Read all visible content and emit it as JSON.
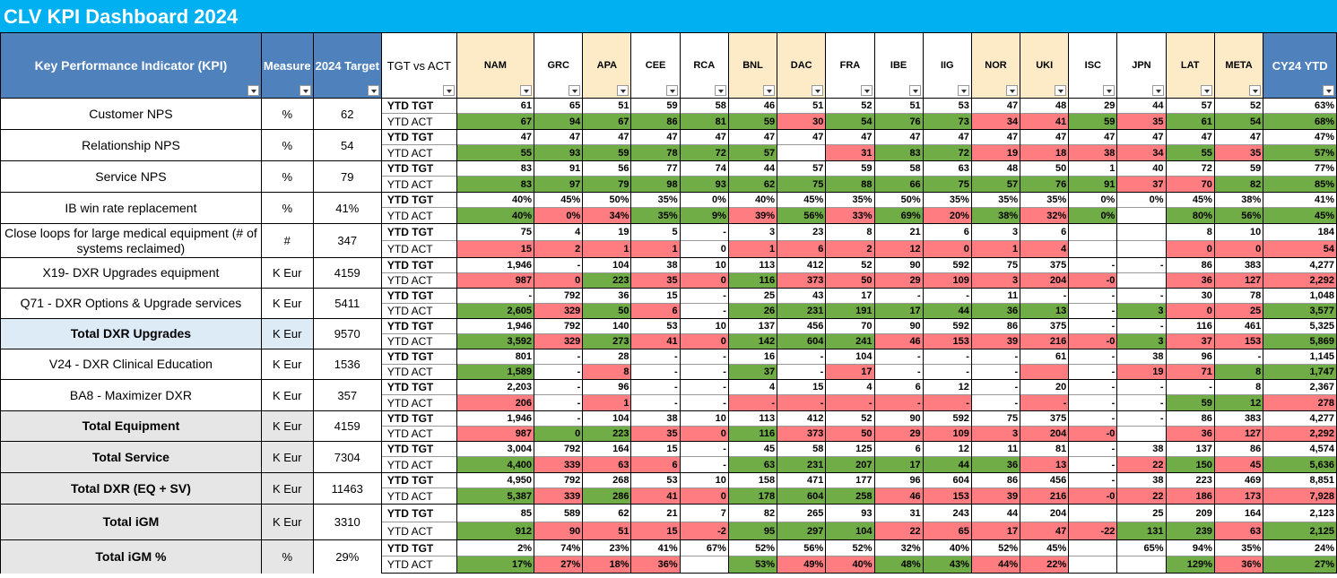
{
  "title": "CLV KPI Dashboard 2024",
  "header": {
    "kpi": "Key Performance Indicator (KPI)",
    "measure": "Measure",
    "target": "2024 Target",
    "tgt_vs_act": "TGT vs ACT",
    "regions": [
      "NAM",
      "GRC",
      "APA",
      "CEE",
      "RCA",
      "BNL",
      "DAC",
      "FRA",
      "IBE",
      "IIG",
      "NOR",
      "UKI",
      "ISC",
      "JPN",
      "LAT",
      "META"
    ],
    "ytd": "CY24 YTD"
  },
  "labels": {
    "tgt": "YTD TGT",
    "act": "YTD ACT"
  },
  "colors": {
    "green": "#70AD47",
    "red": "#FF7C80",
    "header_blue": "#4F81BD",
    "title_blue": "#00B0F0",
    "header_yellow": "#FDEBC8"
  },
  "rows": [
    {
      "kpi": "Customer NPS",
      "measure": "%",
      "target": "62",
      "bold": false,
      "shade": "",
      "tgt": [
        "61",
        "65",
        "51",
        "59",
        "58",
        "46",
        "51",
        "52",
        "51",
        "53",
        "47",
        "48",
        "29",
        "44",
        "57",
        "52",
        "63%"
      ],
      "act": [
        "67",
        "94",
        "67",
        "86",
        "81",
        "59",
        "30",
        "54",
        "76",
        "73",
        "34",
        "41",
        "59",
        "35",
        "61",
        "54",
        "68%"
      ],
      "act_c": [
        "g",
        "g",
        "g",
        "g",
        "g",
        "g",
        "r",
        "g",
        "g",
        "g",
        "r",
        "r",
        "g",
        "r",
        "g",
        "g",
        "g"
      ]
    },
    {
      "kpi": "Relationship NPS",
      "measure": "%",
      "target": "54",
      "bold": false,
      "shade": "",
      "tgt": [
        "47",
        "47",
        "47",
        "47",
        "47",
        "47",
        "47",
        "47",
        "47",
        "47",
        "47",
        "47",
        "47",
        "47",
        "47",
        "47",
        "47%"
      ],
      "act": [
        "55",
        "93",
        "59",
        "78",
        "72",
        "57",
        "",
        "31",
        "83",
        "72",
        "19",
        "18",
        "38",
        "34",
        "55",
        "35",
        "57%"
      ],
      "act_c": [
        "g",
        "g",
        "g",
        "g",
        "g",
        "g",
        "",
        "r",
        "g",
        "g",
        "r",
        "r",
        "r",
        "r",
        "g",
        "r",
        "g"
      ]
    },
    {
      "kpi": "Service NPS",
      "measure": "%",
      "target": "79",
      "bold": false,
      "shade": "",
      "tgt": [
        "83",
        "91",
        "56",
        "77",
        "74",
        "44",
        "57",
        "59",
        "58",
        "63",
        "48",
        "50",
        "1",
        "40",
        "72",
        "59",
        "77%"
      ],
      "act": [
        "83",
        "97",
        "79",
        "98",
        "93",
        "62",
        "75",
        "88",
        "66",
        "75",
        "57",
        "76",
        "91",
        "37",
        "70",
        "82",
        "85%"
      ],
      "act_c": [
        "g",
        "g",
        "g",
        "g",
        "g",
        "g",
        "g",
        "g",
        "g",
        "g",
        "g",
        "g",
        "g",
        "r",
        "r",
        "g",
        "g"
      ]
    },
    {
      "kpi": "IB win rate replacement",
      "measure": "%",
      "target": "41%",
      "bold": false,
      "shade": "",
      "tgt": [
        "40%",
        "45%",
        "50%",
        "35%",
        "0%",
        "40%",
        "45%",
        "35%",
        "50%",
        "35%",
        "35%",
        "35%",
        "0%",
        "0%",
        "45%",
        "38%",
        "41%"
      ],
      "act": [
        "40%",
        "0%",
        "34%",
        "35%",
        "9%",
        "39%",
        "56%",
        "33%",
        "69%",
        "20%",
        "38%",
        "32%",
        "0%",
        "",
        "80%",
        "56%",
        "45%"
      ],
      "act_c": [
        "g",
        "r",
        "r",
        "g",
        "g",
        "r",
        "g",
        "r",
        "g",
        "r",
        "g",
        "r",
        "g",
        "",
        "g",
        "g",
        "g"
      ]
    },
    {
      "kpi": "Close loops for large medical equipment (# of systems reclaimed)",
      "measure": "#",
      "target": "347",
      "bold": false,
      "shade": "",
      "tgt": [
        "75",
        "4",
        "19",
        "5",
        "-",
        "3",
        "23",
        "8",
        "21",
        "6",
        "3",
        "6",
        "",
        "",
        "8",
        "10",
        "184"
      ],
      "act": [
        "15",
        "2",
        "1",
        "1",
        "0",
        "1",
        "6",
        "2",
        "12",
        "0",
        "1",
        "4",
        "",
        "",
        "0",
        "0",
        "54"
      ],
      "act_c": [
        "r",
        "r",
        "r",
        "r",
        "",
        "r",
        "r",
        "r",
        "r",
        "r",
        "r",
        "r",
        "",
        "",
        "r",
        "r",
        "r"
      ]
    },
    {
      "kpi": "X19- DXR Upgrades equipment",
      "measure": "K Eur",
      "target": "4159",
      "bold": false,
      "shade": "",
      "tgt": [
        "1,946",
        "-",
        "104",
        "38",
        "10",
        "113",
        "412",
        "52",
        "90",
        "592",
        "75",
        "375",
        "-",
        "-",
        "86",
        "383",
        "4,277"
      ],
      "act": [
        "987",
        "0",
        "223",
        "35",
        "0",
        "116",
        "373",
        "50",
        "29",
        "109",
        "3",
        "204",
        "-0",
        "",
        "36",
        "127",
        "2,292"
      ],
      "act_c": [
        "r",
        "r",
        "g",
        "r",
        "r",
        "g",
        "r",
        "r",
        "r",
        "r",
        "r",
        "r",
        "r",
        "",
        "r",
        "r",
        "r"
      ]
    },
    {
      "kpi": "Q71 - DXR Options & Upgrade services",
      "measure": "K Eur",
      "target": "5411",
      "bold": false,
      "shade": "",
      "tgt": [
        "-",
        "792",
        "36",
        "15",
        "-",
        "25",
        "43",
        "17",
        "-",
        "-",
        "11",
        "-",
        "-",
        "-",
        "30",
        "78",
        "1,048"
      ],
      "act": [
        "2,605",
        "329",
        "50",
        "6",
        "-",
        "26",
        "231",
        "191",
        "17",
        "44",
        "36",
        "13",
        "-",
        "3",
        "0",
        "25",
        "3,577"
      ],
      "act_c": [
        "g",
        "r",
        "g",
        "r",
        "",
        "g",
        "g",
        "g",
        "g",
        "g",
        "g",
        "g",
        "",
        "g",
        "r",
        "r",
        "g"
      ]
    },
    {
      "kpi": "Total DXR Upgrades",
      "measure": "K Eur",
      "target": "9570",
      "bold": true,
      "shade": "lblue",
      "tgt": [
        "1,946",
        "792",
        "140",
        "53",
        "10",
        "137",
        "456",
        "70",
        "90",
        "592",
        "86",
        "375",
        "-",
        "-",
        "116",
        "461",
        "5,325"
      ],
      "act": [
        "3,592",
        "329",
        "273",
        "41",
        "0",
        "142",
        "604",
        "241",
        "46",
        "153",
        "39",
        "216",
        "-0",
        "3",
        "37",
        "153",
        "5,869"
      ],
      "act_c": [
        "g",
        "r",
        "g",
        "r",
        "r",
        "g",
        "g",
        "g",
        "r",
        "r",
        "r",
        "r",
        "r",
        "g",
        "r",
        "r",
        "g"
      ]
    },
    {
      "kpi": "V24 - DXR Clinical Education",
      "measure": "K Eur",
      "target": "1536",
      "bold": false,
      "shade": "",
      "tgt": [
        "801",
        "-",
        "28",
        "-",
        "-",
        "16",
        "-",
        "104",
        "-",
        "-",
        "-",
        "61",
        "-",
        "38",
        "96",
        "-",
        "1,145"
      ],
      "act": [
        "1,589",
        "-",
        "8",
        "-",
        "-",
        "37",
        "-",
        "17",
        "-",
        "-",
        "-",
        "",
        "-",
        "19",
        "71",
        "8",
        "1,747"
      ],
      "act_c": [
        "g",
        "",
        "r",
        "",
        "",
        "g",
        "",
        "r",
        "",
        "",
        "",
        "r",
        "",
        "r",
        "r",
        "g",
        "g"
      ]
    },
    {
      "kpi": "BA8 - Maximizer DXR",
      "measure": "K Eur",
      "target": "357",
      "bold": false,
      "shade": "",
      "tgt": [
        "2,203",
        "-",
        "96",
        "-",
        "-",
        "4",
        "15",
        "4",
        "6",
        "12",
        "-",
        "20",
        "-",
        "-",
        "-",
        "8",
        "2,367"
      ],
      "act": [
        "206",
        "-",
        "1",
        "-",
        "-",
        "-",
        "-",
        "-",
        "-",
        "-",
        "-",
        "-",
        "-",
        "-",
        "59",
        "12",
        "278"
      ],
      "act_c": [
        "r",
        "",
        "r",
        "",
        "",
        "r",
        "r",
        "r",
        "r",
        "r",
        "",
        "r",
        "",
        "",
        "g",
        "g",
        "r"
      ]
    },
    {
      "kpi": "Total Equipment",
      "measure": "K Eur",
      "target": "4159",
      "bold": true,
      "shade": "shade",
      "tgt": [
        "1,946",
        "-",
        "104",
        "38",
        "10",
        "113",
        "412",
        "52",
        "90",
        "592",
        "75",
        "375",
        "-",
        "-",
        "86",
        "383",
        "4,277"
      ],
      "act": [
        "987",
        "0",
        "223",
        "35",
        "0",
        "116",
        "373",
        "50",
        "29",
        "109",
        "3",
        "204",
        "-0",
        "",
        "36",
        "127",
        "2,292"
      ],
      "act_c": [
        "r",
        "g",
        "g",
        "r",
        "r",
        "g",
        "r",
        "r",
        "r",
        "r",
        "r",
        "r",
        "r",
        "",
        "r",
        "r",
        "r"
      ]
    },
    {
      "kpi": "Total Service",
      "measure": "K Eur",
      "target": "7304",
      "bold": true,
      "shade": "shade",
      "tgt": [
        "3,004",
        "792",
        "164",
        "15",
        "-",
        "45",
        "58",
        "125",
        "6",
        "12",
        "11",
        "81",
        "-",
        "38",
        "137",
        "86",
        "4,574"
      ],
      "act": [
        "4,400",
        "339",
        "63",
        "6",
        "-",
        "63",
        "231",
        "207",
        "17",
        "44",
        "36",
        "13",
        "-",
        "22",
        "150",
        "45",
        "5,636"
      ],
      "act_c": [
        "g",
        "r",
        "r",
        "r",
        "",
        "g",
        "g",
        "g",
        "g",
        "g",
        "g",
        "r",
        "",
        "r",
        "g",
        "r",
        "g"
      ]
    },
    {
      "kpi": "Total DXR (EQ + SV)",
      "measure": "K Eur",
      "target": "11463",
      "bold": true,
      "shade": "shade",
      "tgt": [
        "4,950",
        "792",
        "268",
        "53",
        "10",
        "158",
        "471",
        "177",
        "96",
        "604",
        "86",
        "456",
        "-",
        "38",
        "223",
        "469",
        "8,851"
      ],
      "act": [
        "5,387",
        "339",
        "286",
        "41",
        "0",
        "178",
        "604",
        "258",
        "46",
        "153",
        "39",
        "216",
        "-0",
        "22",
        "186",
        "173",
        "7,928"
      ],
      "act_c": [
        "g",
        "r",
        "g",
        "r",
        "r",
        "g",
        "g",
        "g",
        "r",
        "r",
        "r",
        "r",
        "r",
        "r",
        "r",
        "r",
        "r"
      ]
    },
    {
      "kpi": "Total iGM",
      "measure": "K Eur",
      "target": "3310",
      "bold": true,
      "shade": "shade",
      "tgt": [
        "85",
        "589",
        "62",
        "21",
        "7",
        "82",
        "265",
        "93",
        "31",
        "243",
        "44",
        "204",
        "",
        "25",
        "209",
        "164",
        "2,123"
      ],
      "act": [
        "912",
        "90",
        "51",
        "15",
        "-2",
        "95",
        "297",
        "104",
        "22",
        "65",
        "17",
        "47",
        "-22",
        "131",
        "239",
        "63",
        "2,125"
      ],
      "act_c": [
        "g",
        "r",
        "r",
        "r",
        "r",
        "g",
        "g",
        "g",
        "r",
        "r",
        "r",
        "r",
        "r",
        "g",
        "g",
        "r",
        "g"
      ]
    },
    {
      "kpi": "Total iGM %",
      "measure": "%",
      "target": "29%",
      "bold": true,
      "shade": "shade",
      "tgt": [
        "2%",
        "74%",
        "23%",
        "41%",
        "67%",
        "52%",
        "56%",
        "52%",
        "32%",
        "40%",
        "52%",
        "45%",
        "",
        "65%",
        "94%",
        "35%",
        "24%"
      ],
      "act": [
        "17%",
        "27%",
        "18%",
        "36%",
        "",
        "53%",
        "49%",
        "40%",
        "48%",
        "43%",
        "44%",
        "22%",
        "",
        "",
        "129%",
        "36%",
        "27%"
      ],
      "act_c": [
        "g",
        "r",
        "r",
        "r",
        "",
        "g",
        "r",
        "r",
        "g",
        "g",
        "r",
        "r",
        "",
        "",
        "g",
        "r",
        "g"
      ]
    }
  ]
}
